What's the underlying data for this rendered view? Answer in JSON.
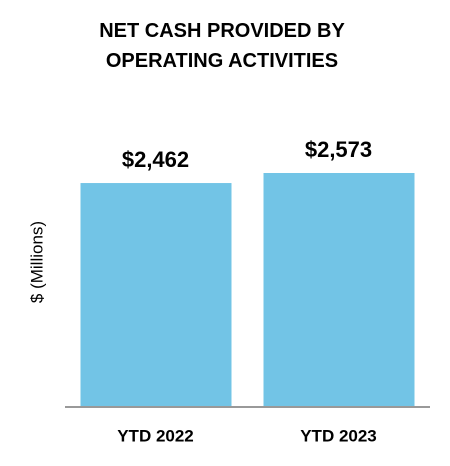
{
  "chart_data": {
    "type": "bar",
    "title": "NET CASH PROVIDED BY OPERATING ACTIVITIES",
    "y_label": "$ (Millions)",
    "categories": [
      "YTD 2022",
      "YTD 2023"
    ],
    "values": [
      2462,
      2573
    ],
    "value_labels": [
      "$2,462",
      "$2,573"
    ],
    "color": "#72c4e6"
  }
}
